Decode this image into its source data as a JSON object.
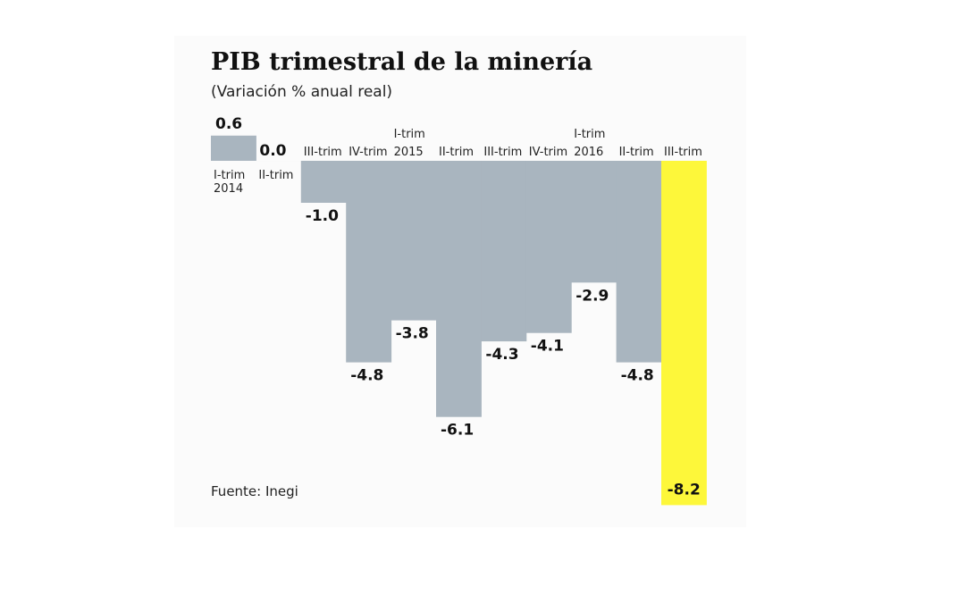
{
  "chart_data": {
    "type": "bar",
    "title": "PIB trimestral de la minería",
    "subtitle": "(Variación % anual real)",
    "source": "Fuente: Inegi",
    "categories": [
      "I-trim 2014",
      "II-trim",
      "III-trim",
      "IV-trim",
      "I-trim 2015",
      "II-trim",
      "III-trim",
      "IV-trim",
      "I-trim 2016",
      "II-trim",
      "III-trim"
    ],
    "values": [
      0.6,
      0.0,
      -1.0,
      -4.8,
      -3.8,
      -6.1,
      -4.3,
      -4.1,
      -2.9,
      -4.8,
      -8.2
    ],
    "value_labels": [
      "0.6",
      "0.0",
      "-1.0",
      "-4.8",
      "-3.8",
      "-6.1",
      "-4.3",
      "-4.1",
      "-2.9",
      "-4.8",
      "-8.2"
    ],
    "colors": [
      "#a9b5bf",
      "#a9b5bf",
      "#a9b5bf",
      "#a9b5bf",
      "#a9b5bf",
      "#a9b5bf",
      "#a9b5bf",
      "#a9b5bf",
      "#a9b5bf",
      "#a9b5bf",
      "#fdf73a"
    ]
  }
}
